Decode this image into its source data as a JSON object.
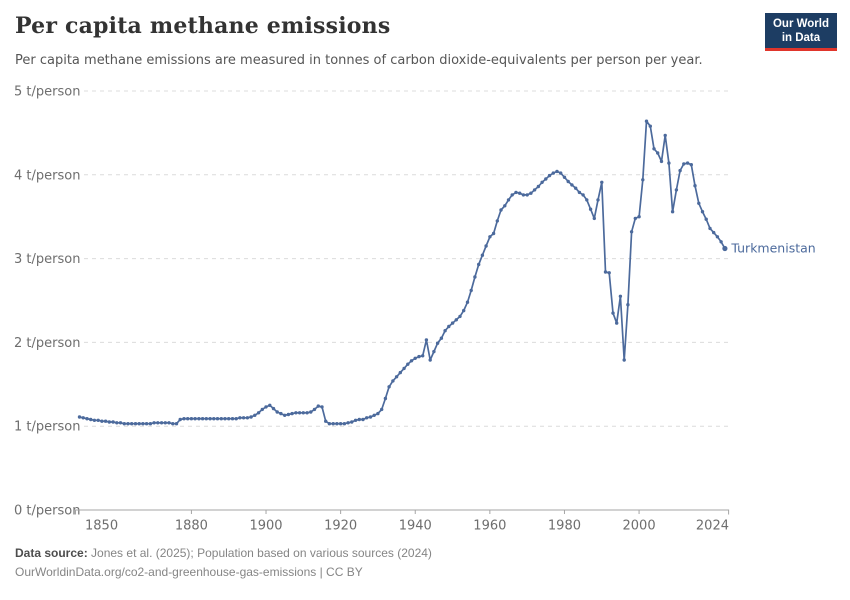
{
  "header": {
    "title": "Per capita methane emissions",
    "subtitle": "Per capita methane emissions are measured in tonnes of carbon dioxide-equivalents per person per year.",
    "logo": {
      "line1": "Our World",
      "line2": "in Data"
    }
  },
  "chart_data": {
    "type": "line",
    "title": "Per capita methane emissions",
    "xlabel": "",
    "ylabel": "t/person",
    "ylim": [
      0,
      5
    ],
    "xlim": [
      1849,
      2025
    ],
    "grid": "horizontal-dashed",
    "legend_position": "end-of-line-label",
    "x_ticks": [
      1850,
      1880,
      1900,
      1920,
      1940,
      1960,
      1980,
      2000,
      2024
    ],
    "y_ticks": [
      {
        "v": 0,
        "label": "0 t/person"
      },
      {
        "v": 1,
        "label": "1 t/person"
      },
      {
        "v": 2,
        "label": "2 t/person"
      },
      {
        "v": 3,
        "label": "3 t/person"
      },
      {
        "v": 4,
        "label": "4 t/person"
      },
      {
        "v": 5,
        "label": "5 t/person"
      }
    ],
    "series": [
      {
        "name": "Turkmenistan",
        "color": "#4C6A9C",
        "first_year": 1850,
        "last_year": 2023,
        "unit": "tonnes of CO2-equivalents per person per year",
        "values": [
          1.11,
          1.1,
          1.09,
          1.08,
          1.07,
          1.07,
          1.06,
          1.06,
          1.05,
          1.05,
          1.04,
          1.04,
          1.03,
          1.03,
          1.03,
          1.03,
          1.03,
          1.03,
          1.03,
          1.03,
          1.04,
          1.04,
          1.04,
          1.04,
          1.04,
          1.03,
          1.03,
          1.08,
          1.09,
          1.09,
          1.09,
          1.09,
          1.09,
          1.09,
          1.09,
          1.09,
          1.09,
          1.09,
          1.09,
          1.09,
          1.09,
          1.09,
          1.09,
          1.1,
          1.1,
          1.1,
          1.11,
          1.13,
          1.16,
          1.2,
          1.23,
          1.25,
          1.21,
          1.17,
          1.15,
          1.13,
          1.14,
          1.15,
          1.16,
          1.16,
          1.16,
          1.16,
          1.17,
          1.2,
          1.24,
          1.23,
          1.06,
          1.03,
          1.03,
          1.03,
          1.03,
          1.03,
          1.04,
          1.05,
          1.07,
          1.08,
          1.08,
          1.1,
          1.11,
          1.13,
          1.15,
          1.2,
          1.33,
          1.47,
          1.54,
          1.59,
          1.64,
          1.69,
          1.74,
          1.78,
          1.81,
          1.83,
          1.84,
          2.03,
          1.79,
          1.89,
          1.99,
          2.05,
          2.14,
          2.19,
          2.23,
          2.27,
          2.31,
          2.38,
          2.48,
          2.62,
          2.78,
          2.93,
          3.04,
          3.15,
          3.26,
          3.3,
          3.45,
          3.58,
          3.63,
          3.7,
          3.76,
          3.79,
          3.78,
          3.76,
          3.76,
          3.78,
          3.82,
          3.86,
          3.91,
          3.95,
          3.99,
          4.02,
          4.04,
          4.02,
          3.97,
          3.92,
          3.88,
          3.84,
          3.79,
          3.76,
          3.7,
          3.59,
          3.48,
          3.7,
          3.91,
          2.84,
          2.83,
          2.35,
          2.23,
          2.55,
          1.79,
          2.45,
          3.32,
          3.48,
          3.5,
          3.94,
          4.64,
          4.58,
          4.31,
          4.26,
          4.16,
          4.47,
          4.14,
          3.56,
          3.82,
          4.05,
          4.13,
          4.14,
          4.12,
          3.87,
          3.66,
          3.56,
          3.47,
          3.36,
          3.31,
          3.26,
          3.2,
          3.12
        ]
      }
    ],
    "colors": {
      "line": "#4C6A9C",
      "grid": "#dcdcdc",
      "axis": "#a5a5a5",
      "tick_text": "#6e6e6e"
    }
  },
  "footer": {
    "source_label": "Data source:",
    "source_text": " Jones et al. (2025); Population based on various sources (2024)",
    "note_text": "OurWorldinData.org/co2-and-greenhouse-gas-emissions | CC BY"
  }
}
